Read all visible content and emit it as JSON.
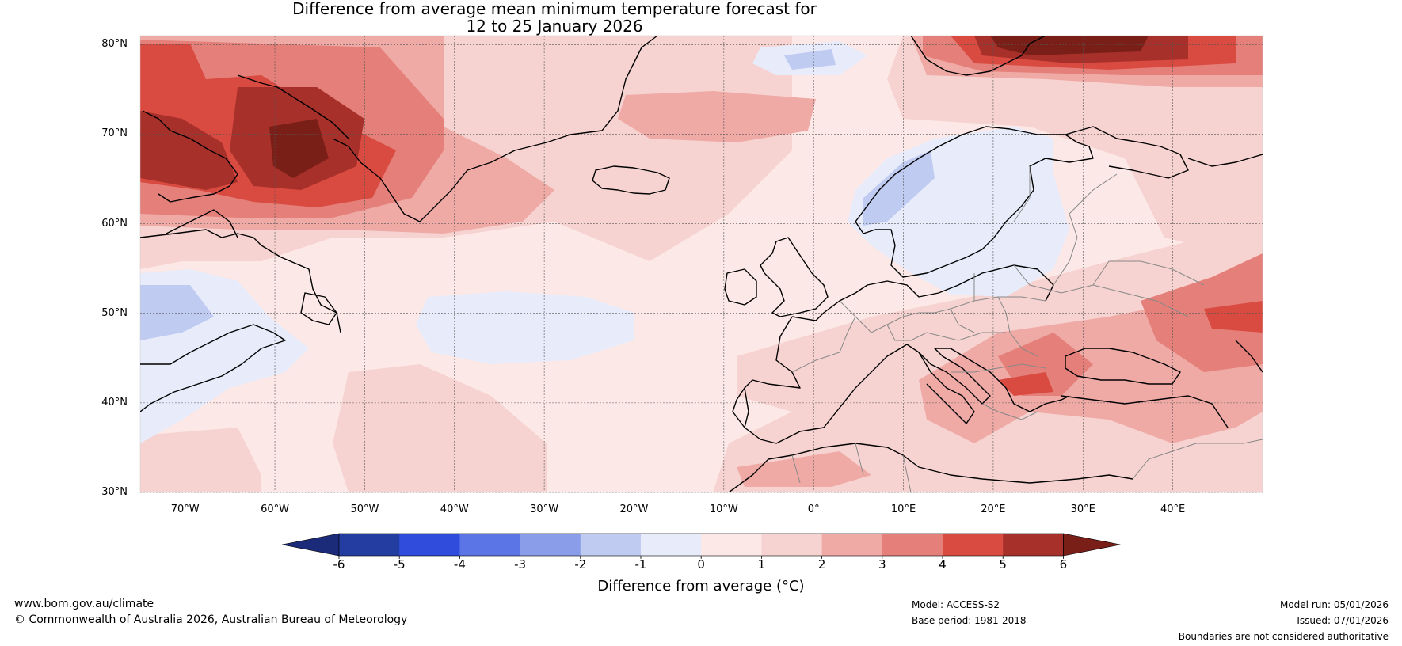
{
  "title": {
    "line1": "Difference from average mean minimum temperature forecast for",
    "line2": "12 to 25 January 2026"
  },
  "map": {
    "lat_labels": [
      "80°N",
      "70°N",
      "60°N",
      "50°N",
      "40°N",
      "30°N"
    ],
    "lon_labels": [
      "70°W",
      "60°W",
      "50°W",
      "40°W",
      "30°W",
      "20°W",
      "10°W",
      "0°",
      "10°E",
      "20°E",
      "30°E",
      "40°E"
    ],
    "lat_range": [
      30,
      81
    ],
    "lon_range": [
      -75,
      50
    ]
  },
  "colorbar": {
    "ticks": [
      "-6",
      "-5",
      "-4",
      "-3",
      "-2",
      "-1",
      "0",
      "1",
      "2",
      "3",
      "4",
      "5",
      "6"
    ],
    "colors": [
      "#233da1",
      "#2f4cdc",
      "#5b75e6",
      "#8a9de9",
      "#c0cbf2",
      "#e7ebfa",
      "#fce9e7",
      "#f6d3d0",
      "#efaaa6",
      "#e57f79",
      "#d94a41",
      "#a8302a"
    ],
    "under_color": "#1c2a7a",
    "over_color": "#7a1e18",
    "label": "Difference from average (°C)"
  },
  "footer": {
    "website": "www.bom.gov.au/climate",
    "copyright": "© Commonwealth of Australia 2026, Australian Bureau of Meteorology",
    "model": "Model: ACCESS-S2",
    "base_period": "Base period: 1981-2018",
    "model_run": "Model run: 05/01/2026",
    "issued": "Issued: 07/01/2026",
    "disclaimer": "Boundaries are not considered authoritative"
  }
}
